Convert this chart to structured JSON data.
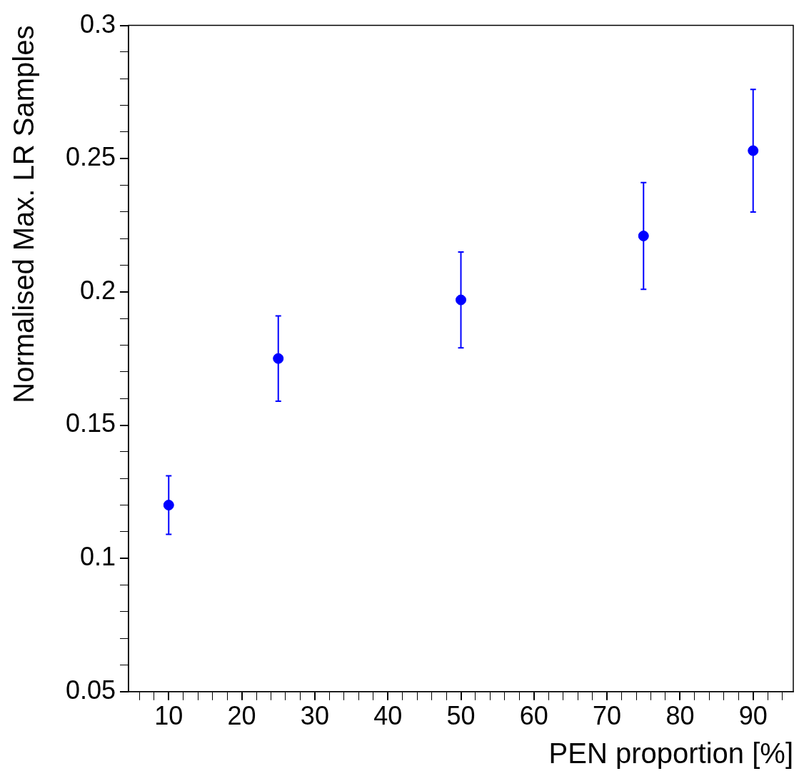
{
  "chart_data": {
    "type": "scatter",
    "xlabel": "PEN proportion [%]",
    "ylabel": "Normalised Max. LR Samples",
    "x": [
      10,
      25,
      50,
      75,
      90
    ],
    "series": [
      {
        "color": "#0000ff",
        "values": [
          0.12,
          0.175,
          0.197,
          0.221,
          0.253
        ],
        "errors": [
          0.011,
          0.016,
          0.018,
          0.02,
          0.023
        ]
      }
    ],
    "marker": "circle",
    "grid": false,
    "legend": false,
    "xlim": [
      4.5,
      95.5
    ],
    "xticks": [
      {
        "value": 6,
        "label": null
      },
      {
        "value": 8,
        "label": null
      },
      10,
      {
        "value": 12,
        "label": null
      },
      {
        "value": 14,
        "label": null
      },
      {
        "value": 16,
        "label": null
      },
      {
        "value": 18,
        "label": null
      },
      20,
      {
        "value": 22,
        "label": null
      },
      {
        "value": 24,
        "label": null
      },
      {
        "value": 26,
        "label": null
      },
      {
        "value": 28,
        "label": null
      },
      30,
      {
        "value": 32,
        "label": null
      },
      {
        "value": 34,
        "label": null
      },
      {
        "value": 36,
        "label": null
      },
      {
        "value": 38,
        "label": null
      },
      40,
      {
        "value": 42,
        "label": null
      },
      {
        "value": 44,
        "label": null
      },
      {
        "value": 46,
        "label": null
      },
      {
        "value": 48,
        "label": null
      },
      50,
      {
        "value": 52,
        "label": null
      },
      {
        "value": 54,
        "label": null
      },
      {
        "value": 56,
        "label": null
      },
      {
        "value": 58,
        "label": null
      },
      60,
      {
        "value": 62,
        "label": null
      },
      {
        "value": 64,
        "label": null
      },
      {
        "value": 66,
        "label": null
      },
      {
        "value": 68,
        "label": null
      },
      70,
      {
        "value": 72,
        "label": null
      },
      {
        "value": 74,
        "label": null
      },
      {
        "value": 76,
        "label": null
      },
      {
        "value": 78,
        "label": null
      },
      80,
      {
        "value": 82,
        "label": null
      },
      {
        "value": 84,
        "label": null
      },
      {
        "value": 86,
        "label": null
      },
      {
        "value": 88,
        "label": null
      },
      90,
      {
        "value": 92,
        "label": null
      },
      {
        "value": 94,
        "label": null
      }
    ],
    "ylim": [
      0.05,
      0.3
    ],
    "yticks": [
      0.05,
      {
        "value": 0.06,
        "label": null
      },
      {
        "value": 0.07,
        "label": null
      },
      {
        "value": 0.08,
        "label": null
      },
      {
        "value": 0.09,
        "label": null
      },
      0.1,
      {
        "value": 0.11,
        "label": null
      },
      {
        "value": 0.12,
        "label": null
      },
      {
        "value": 0.13,
        "label": null
      },
      {
        "value": 0.14,
        "label": null
      },
      0.15,
      {
        "value": 0.16,
        "label": null
      },
      {
        "value": 0.17,
        "label": null
      },
      {
        "value": 0.18,
        "label": null
      },
      {
        "value": 0.19,
        "label": null
      },
      0.2,
      {
        "value": 0.21,
        "label": null
      },
      {
        "value": 0.22,
        "label": null
      },
      {
        "value": 0.23,
        "label": null
      },
      {
        "value": 0.24,
        "label": null
      },
      0.25,
      {
        "value": 0.26,
        "label": null
      },
      {
        "value": 0.27,
        "label": null
      },
      {
        "value": 0.28,
        "label": null
      },
      {
        "value": 0.29,
        "label": null
      },
      0.3
    ]
  }
}
